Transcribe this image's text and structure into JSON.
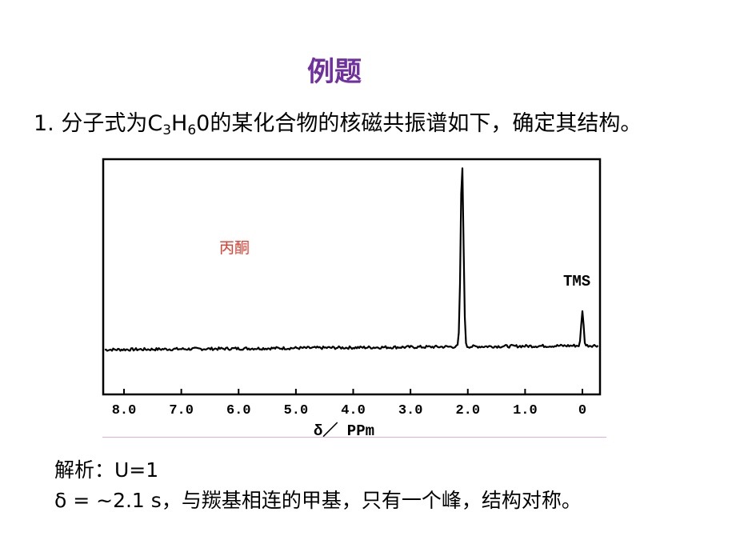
{
  "slide": {
    "title": "例题",
    "question": {
      "prefix": "1. 分子式为C",
      "sub1": "3",
      "mid1": "H",
      "sub2": "6",
      "mid2": "0",
      "suffix": "的某化合物的核磁共振谱如下，确定其结构。"
    },
    "analysis_line1": "解析：U=1",
    "analysis_line2": "δ = ~2.1  s，与羰基相连的甲基，只有一个峰，结构对称。"
  },
  "chart_data": {
    "type": "line",
    "compound_label": "丙酮",
    "reference_label": "TMS",
    "xlabel": "δ／ PPm",
    "x_reversed": true,
    "xlim": [
      8.3,
      -0.3
    ],
    "x_ticks": [
      "8.0",
      "7.0",
      "6.0",
      "5.0",
      "4.0",
      "3.0",
      "2.0",
      "1.0",
      "0"
    ],
    "x_tick_values": [
      8,
      7,
      6,
      5,
      4,
      3,
      2,
      1,
      0
    ],
    "ylim": [
      0,
      1
    ],
    "baseline": 0.2,
    "peaks": [
      {
        "shift": 2.1,
        "height": 0.98,
        "label": ""
      },
      {
        "shift": 0.0,
        "height": 0.35,
        "label": "TMS"
      }
    ],
    "grid": false
  },
  "colors": {
    "title": "#7030a0",
    "compound_label": "#e8392b",
    "trace": "#000000",
    "divider": "#e8a8e0"
  }
}
